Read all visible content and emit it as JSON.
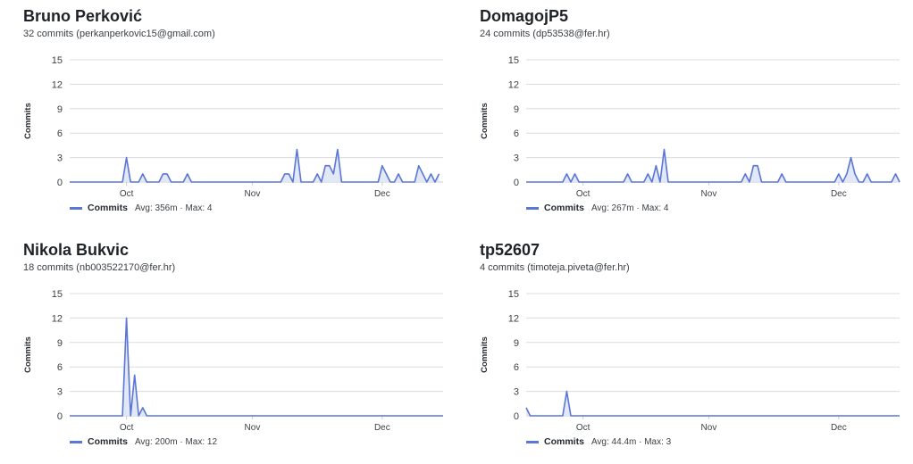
{
  "colors": {
    "line": "#5a76d6",
    "fill": "#dfe5f7",
    "grid": "#d9dce0",
    "baseline": "#c9ccd1"
  },
  "panels": [
    {
      "name": "Bruno Perković",
      "summary": "32 commits (perkanperkovic15@gmail.com)",
      "legend_label": "Commits",
      "legend_stats": "Avg: 356m · Max: 4"
    },
    {
      "name": "DomagojP5",
      "summary": "24 commits (dp53538@fer.hr)",
      "legend_label": "Commits",
      "legend_stats": "Avg: 267m · Max: 4"
    },
    {
      "name": "Nikola Bukvic",
      "summary": "18 commits (nb003522170@fer.hr)",
      "legend_label": "Commits",
      "legend_stats": "Avg: 200m · Max: 12"
    },
    {
      "name": "tp52607",
      "summary": "4 commits (timoteja.piveta@fer.hr)",
      "legend_label": "Commits",
      "legend_stats": "Avg: 44.4m · Max: 3"
    }
  ],
  "chart_data": [
    {
      "type": "area",
      "ylabel": "Commits",
      "yticks": [
        0,
        3,
        6,
        9,
        12,
        15
      ],
      "ylim": [
        0,
        15
      ],
      "xticks": [
        {
          "label": "Oct",
          "day": 14
        },
        {
          "label": "Nov",
          "day": 45
        },
        {
          "label": "Dec",
          "day": 77
        }
      ],
      "xlim": [
        0,
        92
      ],
      "series": [
        {
          "name": "Commits",
          "points": [
            [
              0,
              0
            ],
            [
              13,
              0
            ],
            [
              14,
              3
            ],
            [
              15,
              0
            ],
            [
              17,
              0
            ],
            [
              18,
              1
            ],
            [
              19,
              0
            ],
            [
              22,
              0
            ],
            [
              23,
              1
            ],
            [
              24,
              1
            ],
            [
              25,
              0
            ],
            [
              28,
              0
            ],
            [
              29,
              1
            ],
            [
              30,
              0
            ],
            [
              52,
              0
            ],
            [
              53,
              1
            ],
            [
              54,
              1
            ],
            [
              55,
              0
            ],
            [
              56,
              4
            ],
            [
              57,
              0
            ],
            [
              60,
              0
            ],
            [
              61,
              1
            ],
            [
              62,
              0
            ],
            [
              63,
              2
            ],
            [
              64,
              2
            ],
            [
              65,
              1
            ],
            [
              66,
              4
            ],
            [
              67,
              0
            ],
            [
              76,
              0
            ],
            [
              77,
              2
            ],
            [
              78,
              1
            ],
            [
              79,
              0
            ],
            [
              80,
              0
            ],
            [
              81,
              1
            ],
            [
              82,
              0
            ],
            [
              85,
              0
            ],
            [
              86,
              2
            ],
            [
              87,
              1
            ],
            [
              88,
              0
            ],
            [
              89,
              1
            ],
            [
              90,
              0
            ],
            [
              91,
              1
            ]
          ]
        }
      ]
    },
    {
      "type": "area",
      "ylabel": "Commits",
      "yticks": [
        0,
        3,
        6,
        9,
        12,
        15
      ],
      "ylim": [
        0,
        15
      ],
      "xticks": [
        {
          "label": "Oct",
          "day": 14
        },
        {
          "label": "Nov",
          "day": 45
        },
        {
          "label": "Dec",
          "day": 77
        }
      ],
      "xlim": [
        0,
        92
      ],
      "series": [
        {
          "name": "Commits",
          "points": [
            [
              0,
              0
            ],
            [
              9,
              0
            ],
            [
              10,
              1
            ],
            [
              11,
              0
            ],
            [
              12,
              1
            ],
            [
              13,
              0
            ],
            [
              24,
              0
            ],
            [
              25,
              1
            ],
            [
              26,
              0
            ],
            [
              29,
              0
            ],
            [
              30,
              1
            ],
            [
              31,
              0
            ],
            [
              32,
              2
            ],
            [
              33,
              0
            ],
            [
              34,
              4
            ],
            [
              35,
              0
            ],
            [
              53,
              0
            ],
            [
              54,
              1
            ],
            [
              55,
              0
            ],
            [
              56,
              2
            ],
            [
              57,
              2
            ],
            [
              58,
              0
            ],
            [
              62,
              0
            ],
            [
              63,
              1
            ],
            [
              64,
              0
            ],
            [
              76,
              0
            ],
            [
              77,
              1
            ],
            [
              78,
              0
            ],
            [
              79,
              1
            ],
            [
              80,
              3
            ],
            [
              81,
              1
            ],
            [
              82,
              0
            ],
            [
              83,
              0
            ],
            [
              84,
              1
            ],
            [
              85,
              0
            ],
            [
              90,
              0
            ],
            [
              91,
              1
            ],
            [
              92,
              0
            ]
          ]
        }
      ]
    },
    {
      "type": "area",
      "ylabel": "Commits",
      "yticks": [
        0,
        3,
        6,
        9,
        12,
        15
      ],
      "ylim": [
        0,
        15
      ],
      "xticks": [
        {
          "label": "Oct",
          "day": 14
        },
        {
          "label": "Nov",
          "day": 45
        },
        {
          "label": "Dec",
          "day": 77
        }
      ],
      "xlim": [
        0,
        92
      ],
      "series": [
        {
          "name": "Commits",
          "points": [
            [
              0,
              0
            ],
            [
              13,
              0
            ],
            [
              14,
              12
            ],
            [
              15,
              0
            ],
            [
              16,
              5
            ],
            [
              17,
              0
            ],
            [
              18,
              1
            ],
            [
              19,
              0
            ],
            [
              92,
              0
            ]
          ]
        }
      ]
    },
    {
      "type": "area",
      "ylabel": "Commits",
      "yticks": [
        0,
        3,
        6,
        9,
        12,
        15
      ],
      "ylim": [
        0,
        15
      ],
      "xticks": [
        {
          "label": "Oct",
          "day": 14
        },
        {
          "label": "Nov",
          "day": 45
        },
        {
          "label": "Dec",
          "day": 77
        }
      ],
      "xlim": [
        0,
        92
      ],
      "series": [
        {
          "name": "Commits",
          "points": [
            [
              0,
              1
            ],
            [
              1,
              0
            ],
            [
              9,
              0
            ],
            [
              10,
              3
            ],
            [
              11,
              0
            ],
            [
              92,
              0
            ]
          ]
        }
      ]
    }
  ]
}
